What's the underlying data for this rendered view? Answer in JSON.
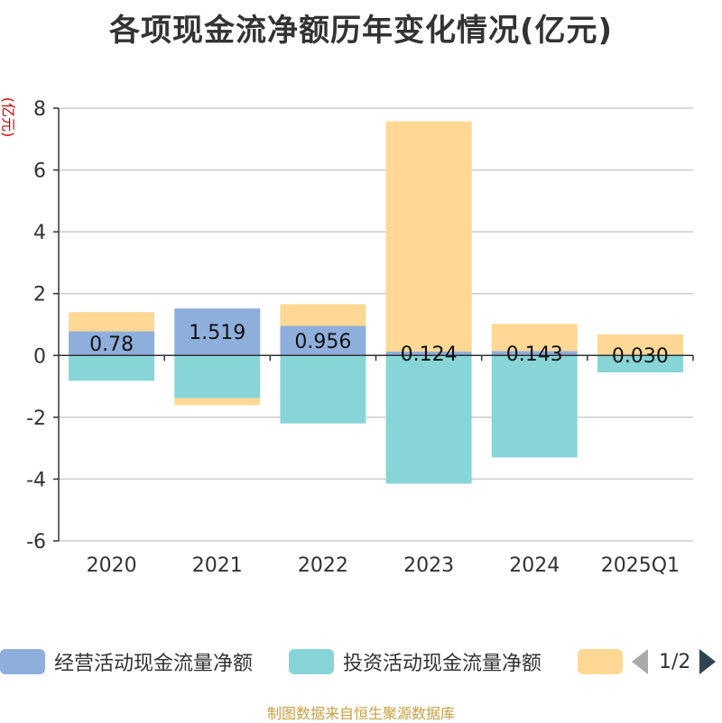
{
  "chart_data": {
    "type": "bar",
    "stacked": true,
    "title": "各项现金流净额历年变化情况(亿元)",
    "ylabel": "(亿元)",
    "xlabel": "",
    "ylim": [
      -6,
      8
    ],
    "yticks": [
      8,
      6,
      4,
      2,
      0,
      -2,
      -4,
      -6
    ],
    "categories": [
      "2020",
      "2021",
      "2022",
      "2023",
      "2024",
      "2025Q1"
    ],
    "series": [
      {
        "name": "经营活动现金流量净额",
        "color": "#8eaedb",
        "values": [
          0.78,
          1.519,
          0.956,
          0.124,
          0.143,
          0.03
        ],
        "labels": [
          "0.78",
          "1.519",
          "0.956",
          "0.124",
          "0.143",
          "0.030"
        ]
      },
      {
        "name": "投资活动现金流量净额",
        "color": "#88d5d8",
        "values": [
          -0.82,
          -1.38,
          -2.2,
          -4.15,
          -3.3,
          -0.55
        ]
      },
      {
        "name": "",
        "color": "#fed894",
        "values": [
          0.62,
          -0.23,
          0.7,
          7.45,
          0.88,
          0.65
        ]
      }
    ]
  },
  "legend": {
    "item1": "经营活动现金流量净额",
    "item2": "投资活动现金流量净额",
    "page": "1/2"
  },
  "source": "制图数据来自恒生聚源数据库"
}
